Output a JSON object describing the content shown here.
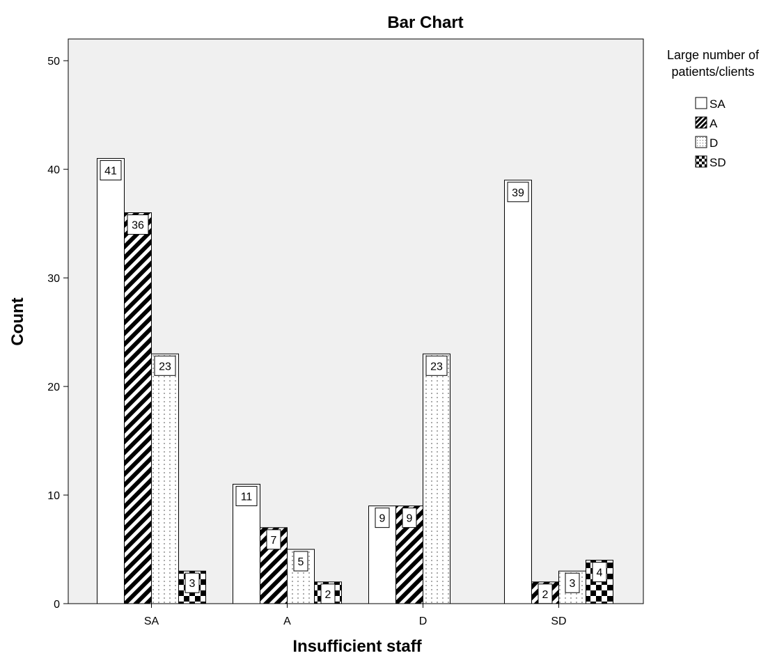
{
  "chart_data": {
    "type": "bar",
    "title": "Bar Chart",
    "xlabel": "Insufficient staff",
    "ylabel": "Count",
    "ylim": [
      0,
      52
    ],
    "yticks": [
      0,
      10,
      20,
      30,
      40,
      50
    ],
    "categories": [
      "SA",
      "A",
      "D",
      "SD"
    ],
    "legend_title": "Large number of patients/clients",
    "legend_title_lines": [
      "Large number of",
      "patients/clients"
    ],
    "legend_placement": "right",
    "series": [
      {
        "name": "SA",
        "pattern": "white",
        "values": [
          41,
          11,
          9,
          39
        ]
      },
      {
        "name": "A",
        "pattern": "diagonal",
        "values": [
          36,
          7,
          9,
          2
        ]
      },
      {
        "name": "D",
        "pattern": "dotted",
        "values": [
          23,
          5,
          23,
          3
        ]
      },
      {
        "name": "SD",
        "pattern": "checker",
        "values": [
          3,
          2,
          0,
          4
        ]
      }
    ],
    "plot_background": "#f0f0f0",
    "grid": false
  }
}
